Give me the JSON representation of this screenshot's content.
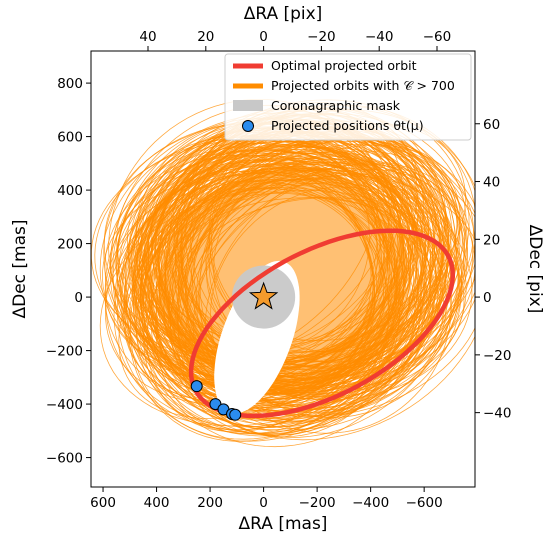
{
  "chart_data": {
    "type": "line",
    "x_axis_bottom": {
      "label": "ΔRA [mas]",
      "range": [
        645,
        -790
      ],
      "reversed": true,
      "ticks": [
        600,
        400,
        200,
        0,
        -200,
        -400,
        -600
      ],
      "tick_labels": [
        "600",
        "400",
        "200",
        "0",
        "−200",
        "−400",
        "−600"
      ]
    },
    "y_axis_left": {
      "label": "ΔDec [mas]",
      "range": [
        -710,
        920
      ],
      "ticks": [
        -600,
        -400,
        -200,
        0,
        200,
        400,
        600,
        800
      ],
      "tick_labels": [
        "−600",
        "−400",
        "−200",
        "0",
        "200",
        "400",
        "600",
        "800"
      ]
    },
    "x_axis_top": {
      "label": "ΔRA [pix]",
      "ticks": [
        40,
        20,
        0,
        -20,
        -40,
        -60
      ],
      "tick_labels": [
        "40",
        "20",
        "0",
        "−20",
        "−40",
        "−60"
      ]
    },
    "y_axis_right": {
      "label": "ΔDec [pix]",
      "ticks": [
        -40,
        -20,
        0,
        20,
        40,
        60
      ],
      "tick_labels": [
        "−40",
        "−20",
        "0",
        "20",
        "40",
        "60"
      ]
    },
    "mas_per_pix": 10.8,
    "grid": false,
    "legend": {
      "position": "top-right",
      "entries": [
        {
          "label": "Optimal projected orbit",
          "color": "#f03c32",
          "marker": "line"
        },
        {
          "label": "Projected orbits with 𝒞 > 700",
          "color": "#ff8c00",
          "marker": "line"
        },
        {
          "label": "Coronagraphic mask",
          "color": "#c8c8c8",
          "marker": "patch"
        },
        {
          "label": "Projected positions θt(μ)",
          "color": "#2b8cee",
          "marker": "circle"
        }
      ]
    },
    "star": {
      "x": 0,
      "y": 0,
      "color": "#f59b2c"
    },
    "coronagraphic_mask": {
      "center": [
        0,
        0
      ],
      "radius_mas": 118,
      "color": "#c8c8c8"
    },
    "optimal_orbit": {
      "color": "#f03c32",
      "center": [
        -218,
        -98
      ],
      "semi_major": 535,
      "semi_minor": 270,
      "rotation_deg": 28
    },
    "projected_orbits": {
      "color": "#ff8c00",
      "count": 220,
      "center_range": {
        "x": [
          -260,
          60
        ],
        "y": [
          -40,
          230
        ]
      },
      "semi_major_range": [
        430,
        620
      ],
      "semi_minor_range": [
        370,
        520
      ],
      "rotation_range_deg": [
        -10,
        55
      ]
    },
    "projected_positions": {
      "color": "#2b8cee",
      "points": [
        {
          "x": 250,
          "y": -333
        },
        {
          "x": 180,
          "y": -400
        },
        {
          "x": 150,
          "y": -420
        },
        {
          "x": 118,
          "y": -437
        },
        {
          "x": 106,
          "y": -440
        }
      ]
    }
  }
}
